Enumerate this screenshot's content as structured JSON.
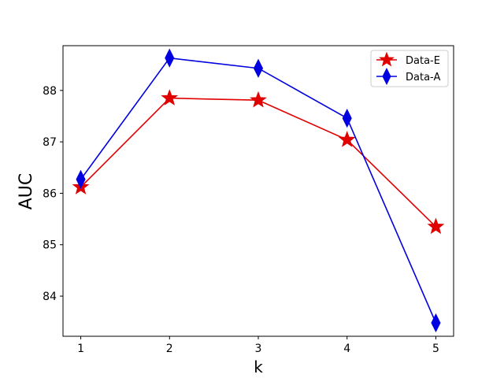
{
  "chart_data": {
    "type": "line",
    "x": [
      1,
      2,
      3,
      4,
      5
    ],
    "series": [
      {
        "name": "Data-E",
        "values": [
          86.12,
          87.85,
          87.81,
          87.04,
          85.35
        ],
        "color": "#e00000",
        "marker": "star"
      },
      {
        "name": "Data-A",
        "values": [
          86.27,
          88.63,
          88.43,
          87.46,
          83.48
        ],
        "color": "#0000e0",
        "marker": "diamond"
      }
    ],
    "xlabel": "k",
    "ylabel": "AUC",
    "xticks": [
      "1",
      "2",
      "3",
      "4",
      "5"
    ],
    "yticks": [
      "84",
      "85",
      "86",
      "87",
      "88"
    ],
    "xlim": [
      0.8,
      5.2
    ],
    "ylim": [
      83.22,
      88.87
    ],
    "grid": false,
    "legend_position": "top-right"
  }
}
